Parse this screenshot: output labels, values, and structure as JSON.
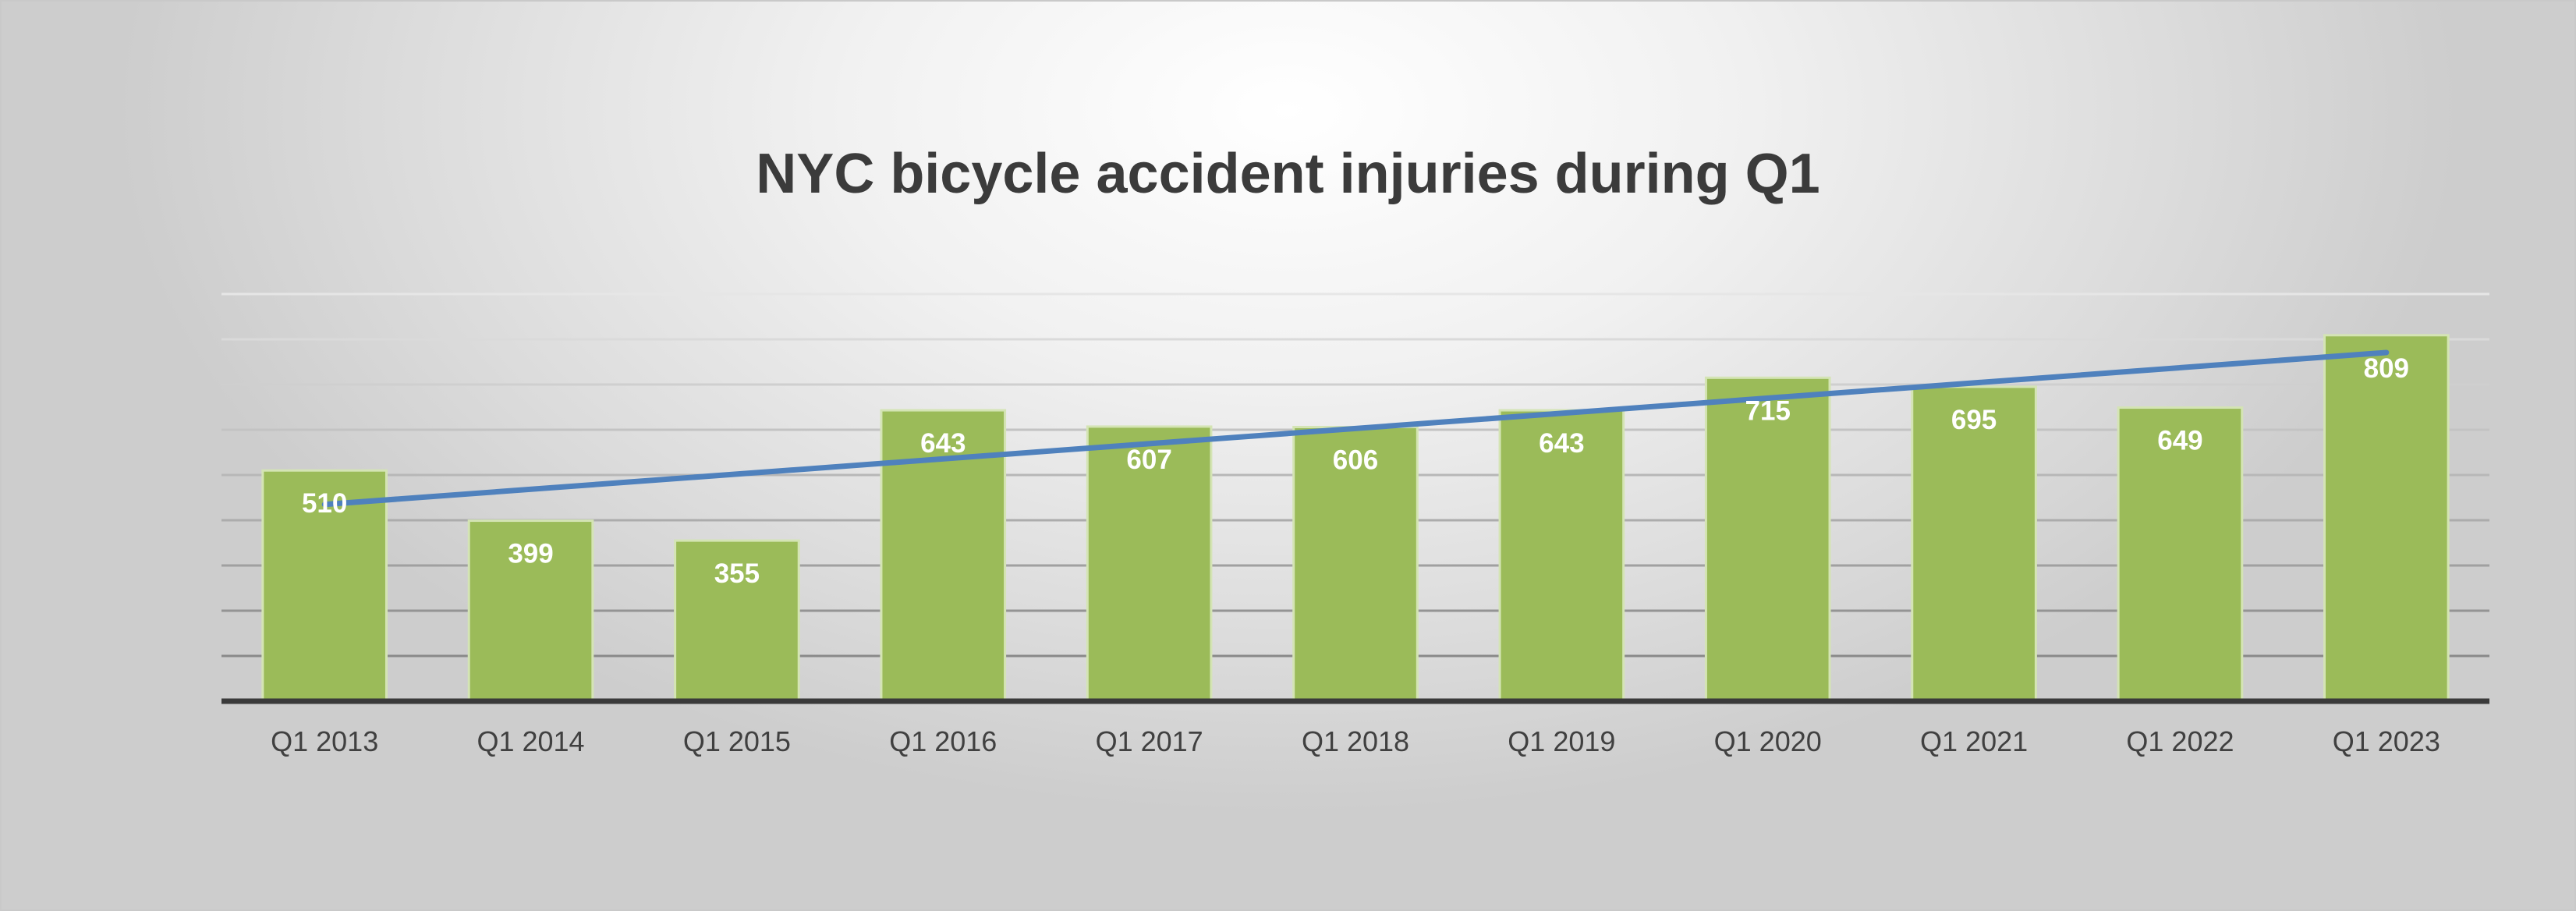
{
  "chart_data": {
    "type": "bar",
    "title": "NYC bicycle accident injuries during Q1",
    "xlabel": "",
    "ylabel": "",
    "categories": [
      "Q1 2013",
      "Q1 2014",
      "Q1 2015",
      "Q1 2016",
      "Q1 2017",
      "Q1 2018",
      "Q1 2019",
      "Q1 2020",
      "Q1 2021",
      "Q1 2022",
      "Q1 2023"
    ],
    "series": [
      {
        "values": [
          510,
          399,
          355,
          643,
          607,
          606,
          643,
          715,
          695,
          649,
          809
        ],
        "color": "#9bbb59"
      }
    ],
    "trendline": {
      "type": "linear",
      "color": "#4f81bd"
    },
    "data_labels": true,
    "ylim": [
      0,
      900
    ],
    "y_tick_step": 100,
    "y_tick_labels_visible": false,
    "grid": true,
    "legend": "none"
  }
}
